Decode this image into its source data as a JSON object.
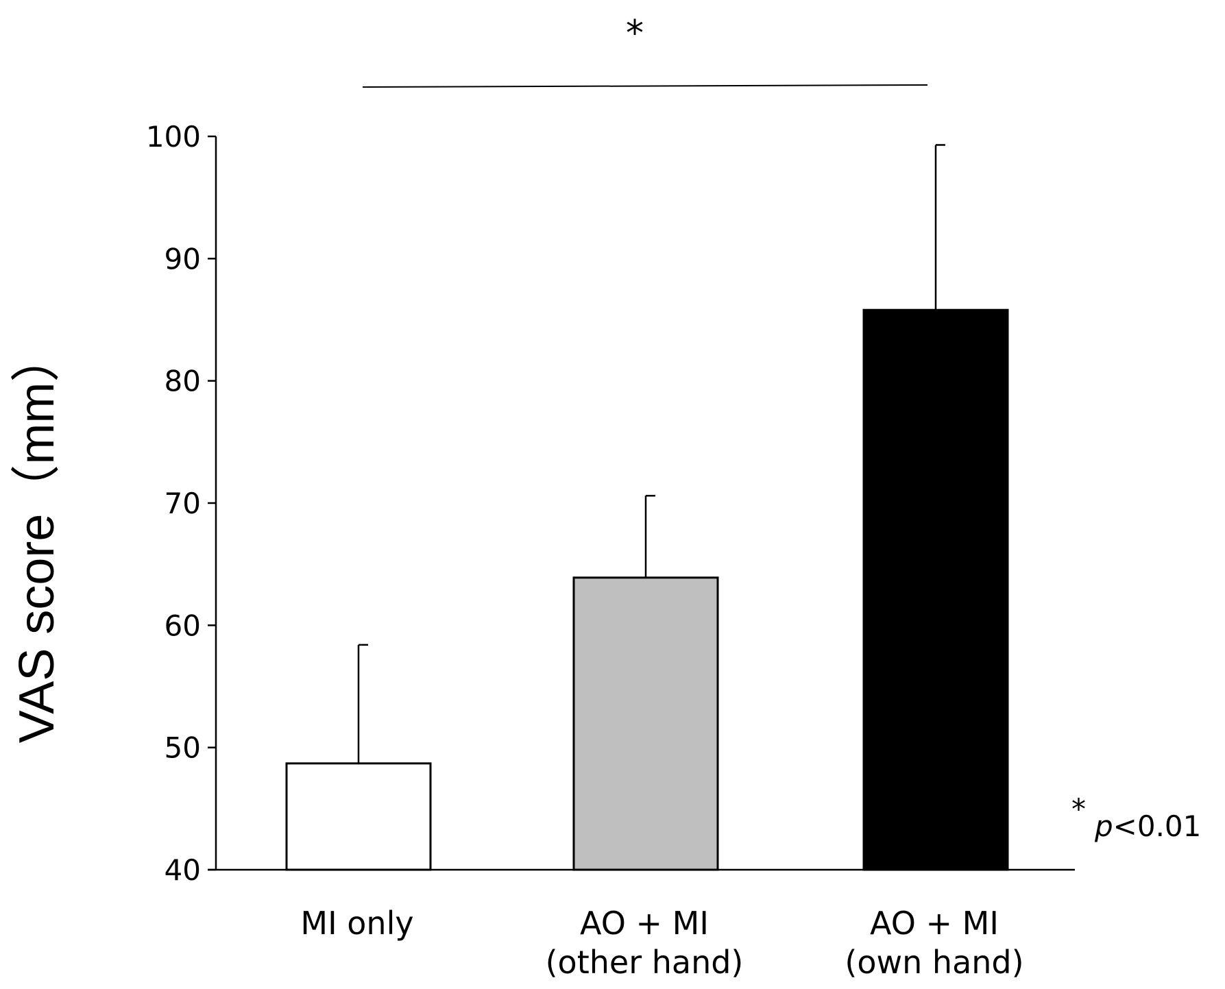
{
  "chart_data": {
    "type": "bar",
    "title": "",
    "xlabel": "",
    "ylabel": "VAS score（mm）",
    "ylim": [
      40,
      100
    ],
    "yticks": [
      "40",
      "50",
      "60",
      "70",
      "80",
      "90",
      "100"
    ],
    "grid": false,
    "bars": [
      {
        "label_lines": [
          "MI only"
        ],
        "value": 48.7,
        "error": 9.7,
        "fill": "#ffffff"
      },
      {
        "label_lines": [
          "AO + MI",
          "(other hand)"
        ],
        "value": 63.9,
        "error": 6.7,
        "fill": "#bfbfbf"
      },
      {
        "label_lines": [
          "AO + MI",
          "(own hand)"
        ],
        "value": 85.8,
        "error": 13.5,
        "fill": "#000000"
      }
    ],
    "significance": {
      "marker": "*",
      "from_bar": 0,
      "to_bar": 2,
      "note_marker": "*",
      "note_p": "p",
      "note_text": "<0.01"
    }
  }
}
